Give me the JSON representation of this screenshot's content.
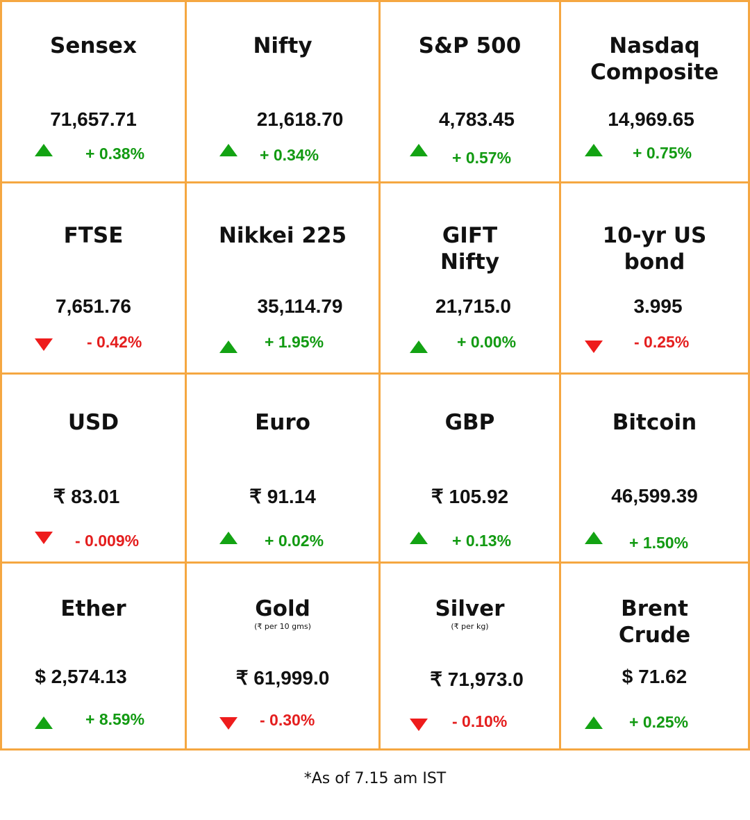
{
  "colors": {
    "border": "#F5A741",
    "up": "#13A313",
    "down": "#EE1C1C"
  },
  "tiles": [
    {
      "name": "Sensex",
      "value": "71,657.71",
      "change": "+ 0.38%",
      "direction": "up",
      "arrow_icon": "triangle-up-icon"
    },
    {
      "name": "Nifty",
      "value": "21,618.70",
      "change": "+ 0.34%",
      "direction": "up",
      "arrow_icon": "triangle-up-icon"
    },
    {
      "name": "S&P 500",
      "value": "4,783.45",
      "change": "+ 0.57%",
      "direction": "up",
      "arrow_icon": "triangle-up-icon"
    },
    {
      "name": "Nasdaq Composite",
      "value": "14,969.65",
      "change": "+ 0.75%",
      "direction": "up",
      "arrow_icon": "triangle-up-icon"
    },
    {
      "name": "FTSE",
      "value": "7,651.76",
      "change": "- 0.42%",
      "direction": "down",
      "arrow_icon": "triangle-down-icon"
    },
    {
      "name": "Nikkei 225",
      "value": "35,114.79",
      "change": "+ 1.95%",
      "direction": "up",
      "arrow_icon": "triangle-up-icon"
    },
    {
      "name": "GIFT Nifty",
      "value": "21,715.0",
      "change": "+ 0.00%",
      "direction": "up",
      "arrow_icon": "triangle-up-icon"
    },
    {
      "name": "10-yr US bond",
      "value": "3.995",
      "change": "- 0.25%",
      "direction": "down",
      "arrow_icon": "triangle-down-icon"
    },
    {
      "name": "USD",
      "value": "₹ 83.01",
      "change": "- 0.009%",
      "direction": "down",
      "arrow_icon": "triangle-down-icon"
    },
    {
      "name": "Euro",
      "value": "₹ 91.14",
      "change": "+ 0.02%",
      "direction": "up",
      "arrow_icon": "triangle-up-icon"
    },
    {
      "name": "GBP",
      "value": "₹ 105.92",
      "change": "+ 0.13%",
      "direction": "up",
      "arrow_icon": "triangle-up-icon"
    },
    {
      "name": "Bitcoin",
      "value": "46,599.39",
      "change": "+ 1.50%",
      "direction": "up",
      "arrow_icon": "triangle-up-icon"
    },
    {
      "name": "Ether",
      "value": "$ 2,574.13",
      "change": "+ 8.59%",
      "direction": "up",
      "arrow_icon": "triangle-up-icon"
    },
    {
      "name": "Gold",
      "subtitle": "(₹ per 10 gms)",
      "value": "₹ 61,999.0",
      "change": "- 0.30%",
      "direction": "down",
      "arrow_icon": "triangle-down-icon"
    },
    {
      "name": "Silver",
      "subtitle": "(₹ per kg)",
      "value": "₹ 71,973.0",
      "change": "- 0.10%",
      "direction": "down",
      "arrow_icon": "triangle-down-icon"
    },
    {
      "name": "Brent Crude",
      "value": "$ 71.62",
      "change": "+ 0.25%",
      "direction": "up",
      "arrow_icon": "triangle-up-icon"
    }
  ],
  "footnote": "*As of 7.15 am IST"
}
